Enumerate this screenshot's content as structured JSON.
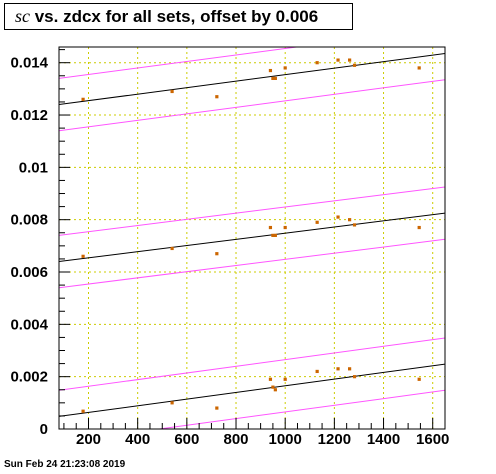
{
  "title": {
    "symbol": "sc",
    "rest": " vs. zdcx for all sets, offset by 0.006"
  },
  "footer_timestamp": "Sun Feb 24 21:23:08 2019",
  "chart_data": {
    "type": "scatter",
    "xlim": [
      80,
      1650
    ],
    "ylim": [
      0,
      0.0146
    ],
    "x_ticks": [
      {
        "v": 200,
        "label": "200"
      },
      {
        "v": 400,
        "label": "400"
      },
      {
        "v": 600,
        "label": "600"
      },
      {
        "v": 800,
        "label": "800"
      },
      {
        "v": 1000,
        "label": "1000"
      },
      {
        "v": 1200,
        "label": "1200"
      },
      {
        "v": 1400,
        "label": "1400"
      },
      {
        "v": 1600,
        "label": "1600"
      }
    ],
    "y_ticks": [
      {
        "v": 0,
        "label": "0"
      },
      {
        "v": 0.002,
        "label": "0.002"
      },
      {
        "v": 0.004,
        "label": "0.004"
      },
      {
        "v": 0.006,
        "label": "0.006"
      },
      {
        "v": 0.008,
        "label": "0.008"
      },
      {
        "v": 0.01,
        "label": "0.01"
      },
      {
        "v": 0.012,
        "label": "0.012"
      },
      {
        "v": 0.014,
        "label": "0.014"
      }
    ],
    "grid": true,
    "marker_color": "#cc6600",
    "fit_color": "#000000",
    "band_color": "#ff55ff",
    "grid_color": "#cccc00",
    "series": [
      {
        "points": [
          [
            178,
            0.00068
          ],
          [
            540,
            0.001
          ],
          [
            722,
            0.0008
          ],
          [
            940,
            0.0019
          ],
          [
            950,
            0.0016
          ],
          [
            960,
            0.0015
          ],
          [
            1000,
            0.0019
          ],
          [
            1130,
            0.0022
          ],
          [
            1215,
            0.0023
          ],
          [
            1262,
            0.0023
          ],
          [
            1282,
            0.002
          ],
          [
            1545,
            0.0019
          ]
        ],
        "fit": [
          [
            80,
            0.00048
          ],
          [
            1650,
            0.00248
          ]
        ],
        "band_upper": [
          [
            80,
            0.00148
          ],
          [
            1650,
            0.00348
          ]
        ],
        "band_lower": [
          [
            80,
            -0.00052
          ],
          [
            1650,
            0.00148
          ]
        ]
      },
      {
        "points": [
          [
            178,
            0.0066
          ],
          [
            540,
            0.0069
          ],
          [
            722,
            0.0067
          ],
          [
            940,
            0.0077
          ],
          [
            950,
            0.0074
          ],
          [
            960,
            0.0074
          ],
          [
            1000,
            0.0077
          ],
          [
            1130,
            0.0079
          ],
          [
            1215,
            0.0081
          ],
          [
            1262,
            0.008
          ],
          [
            1282,
            0.0078
          ],
          [
            1545,
            0.0077
          ]
        ],
        "fit": [
          [
            80,
            0.0064
          ],
          [
            1650,
            0.00825
          ]
        ],
        "band_upper": [
          [
            80,
            0.0074
          ],
          [
            1650,
            0.00925
          ]
        ],
        "band_lower": [
          [
            80,
            0.0054
          ],
          [
            1650,
            0.00725
          ]
        ]
      },
      {
        "points": [
          [
            178,
            0.0126
          ],
          [
            540,
            0.0129
          ],
          [
            722,
            0.0127
          ],
          [
            940,
            0.0137
          ],
          [
            950,
            0.0134
          ],
          [
            960,
            0.0134
          ],
          [
            1000,
            0.0138
          ],
          [
            1130,
            0.014
          ],
          [
            1215,
            0.0141
          ],
          [
            1262,
            0.0141
          ],
          [
            1282,
            0.0139
          ],
          [
            1545,
            0.0138
          ]
        ],
        "fit": [
          [
            80,
            0.0124
          ],
          [
            1650,
            0.01435
          ]
        ],
        "band_upper": [
          [
            80,
            0.0134
          ],
          [
            1650,
            0.01535
          ]
        ],
        "band_lower": [
          [
            80,
            0.0114
          ],
          [
            1650,
            0.01335
          ]
        ]
      }
    ]
  }
}
